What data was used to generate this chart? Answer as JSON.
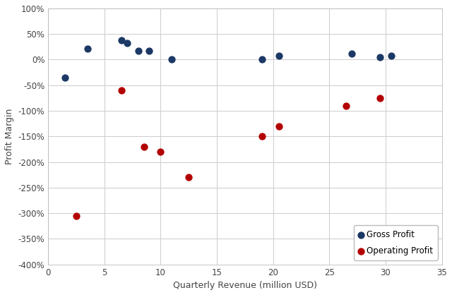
{
  "gross_profit": {
    "x": [
      1.5,
      3.5,
      6.5,
      7.0,
      8.0,
      9.0,
      11.0,
      19.0,
      20.5,
      27.0,
      29.5,
      30.5
    ],
    "y": [
      -0.35,
      0.22,
      0.38,
      0.33,
      0.17,
      0.17,
      0.0,
      0.0,
      0.08,
      0.12,
      0.05,
      0.08
    ]
  },
  "operating_profit": {
    "x": [
      2.5,
      6.5,
      8.5,
      10.0,
      12.5,
      19.0,
      20.5,
      26.5,
      29.5
    ],
    "y": [
      -3.05,
      -0.6,
      -1.7,
      -1.8,
      -2.3,
      -1.5,
      -1.3,
      -0.9,
      -0.75
    ]
  },
  "gross_color": "#1c3966",
  "operating_color": "#b30000",
  "xlabel": "Quarterly Revenue (million USD)",
  "ylabel": "Profit Margin",
  "xlim": [
    0,
    35
  ],
  "ylim": [
    -4.0,
    1.0
  ],
  "yticks": [
    1.0,
    0.5,
    0.0,
    -0.5,
    -1.0,
    -1.5,
    -2.0,
    -2.5,
    -3.0,
    -3.5,
    -4.0
  ],
  "xticks": [
    0,
    5,
    10,
    15,
    20,
    25,
    30,
    35
  ],
  "grid_color": "#cccccc",
  "background_color": "#ffffff",
  "marker_size": 55,
  "legend_labels": [
    "Gross Profit",
    "Operating Profit"
  ],
  "fig_width": 6.4,
  "fig_height": 4.18,
  "dpi": 100
}
